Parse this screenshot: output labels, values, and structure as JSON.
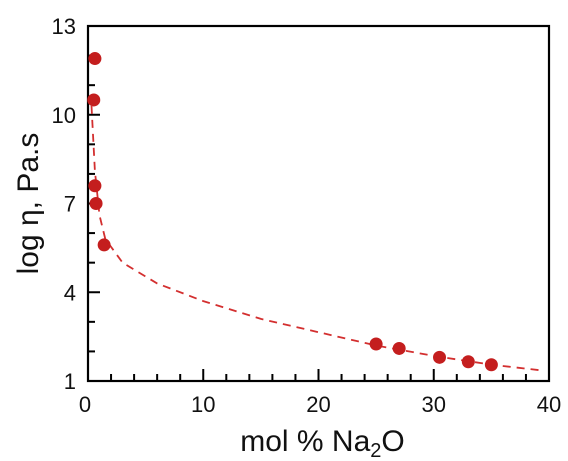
{
  "chart_data": {
    "type": "scatter",
    "title": "",
    "xlabel": {
      "prefix": "mol % Na",
      "subscript": "2",
      "suffix": "O"
    },
    "ylabel": "log η, Pa.s",
    "xlim": [
      0,
      40
    ],
    "ylim": [
      1,
      13
    ],
    "x_ticks": [
      0,
      10,
      20,
      30,
      40
    ],
    "x_tick_labels": [
      "0",
      "10",
      "20",
      "30",
      "40"
    ],
    "y_ticks": [
      1,
      4,
      7,
      10,
      13
    ],
    "y_tick_labels": [
      "1",
      "4",
      "7",
      "10",
      "13"
    ],
    "grid": false,
    "legend": "none",
    "series": [
      {
        "points": [
          {
            "x": 0.6,
            "y": 11.9
          },
          {
            "x": 0.5,
            "y": 10.5
          },
          {
            "x": 0.6,
            "y": 7.6
          },
          {
            "x": 0.7,
            "y": 7.0
          },
          {
            "x": 1.4,
            "y": 5.6
          },
          {
            "x": 25.0,
            "y": 2.25
          },
          {
            "x": 27.0,
            "y": 2.1
          },
          {
            "x": 30.5,
            "y": 1.8
          },
          {
            "x": 33.0,
            "y": 1.65
          },
          {
            "x": 35.0,
            "y": 1.55
          }
        ],
        "fit_curve": [
          {
            "x": 0.3,
            "y": 10.3
          },
          {
            "x": 0.6,
            "y": 8.1
          },
          {
            "x": 1.0,
            "y": 6.6
          },
          {
            "x": 1.5,
            "y": 5.8
          },
          {
            "x": 3.0,
            "y": 5.0
          },
          {
            "x": 6.0,
            "y": 4.3
          },
          {
            "x": 10.0,
            "y": 3.7
          },
          {
            "x": 15.0,
            "y": 3.1
          },
          {
            "x": 20.0,
            "y": 2.65
          },
          {
            "x": 25.0,
            "y": 2.2
          },
          {
            "x": 30.0,
            "y": 1.85
          },
          {
            "x": 35.0,
            "y": 1.55
          },
          {
            "x": 39.5,
            "y": 1.35
          }
        ]
      }
    ],
    "colors": {
      "marker": "#c41e1e",
      "fit_line": "#d32f2f",
      "axis": "#000000"
    }
  }
}
